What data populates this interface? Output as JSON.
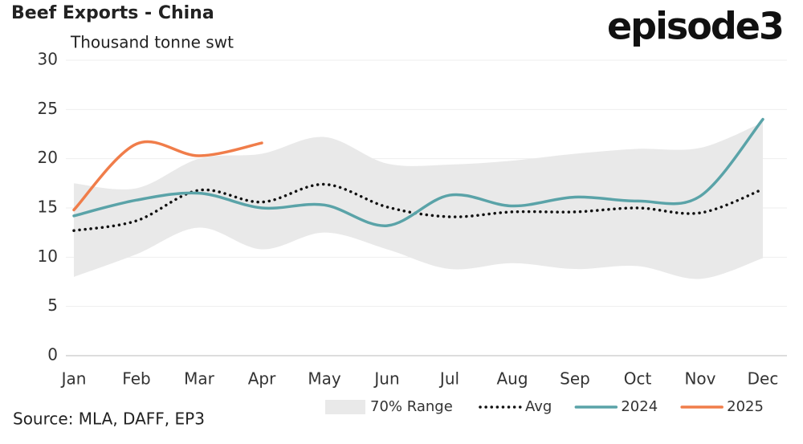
{
  "chart_data": {
    "type": "line",
    "title": "Beef Exports - China",
    "brand": "episode3",
    "y_label": "Thousand tonne swt",
    "source": "Source: MLA, DAFF, EP3",
    "categories": [
      "Jan",
      "Feb",
      "Mar",
      "Apr",
      "May",
      "Jun",
      "Jul",
      "Aug",
      "Sep",
      "Oct",
      "Nov",
      "Dec"
    ],
    "range": {
      "name": "70% Range",
      "color": "#e9e9e9",
      "low": [
        8,
        10.3,
        13,
        10.8,
        12.5,
        10.8,
        8.8,
        9.4,
        8.8,
        9.1,
        7.8,
        9.9
      ],
      "high": [
        17.5,
        17,
        20,
        20.5,
        22.2,
        19.5,
        19.4,
        19.8,
        20.5,
        21,
        21.1,
        23.7
      ]
    },
    "series": [
      {
        "name": "Avg",
        "color": "#111111",
        "dash": true,
        "values": [
          12.7,
          13.7,
          16.8,
          15.6,
          17.4,
          15.1,
          14.1,
          14.6,
          14.6,
          15.0,
          14.5,
          16.9
        ]
      },
      {
        "name": "2024",
        "color": "#5aa3a8",
        "values": [
          14.2,
          15.8,
          16.5,
          15.0,
          15.3,
          13.2,
          16.3,
          15.2,
          16.1,
          15.7,
          16.2,
          24.0
        ]
      },
      {
        "name": "2025",
        "color": "#f07d4a",
        "values": [
          14.8,
          21.5,
          20.3,
          21.6,
          null,
          null,
          null,
          null,
          null,
          null,
          null,
          null
        ]
      }
    ],
    "ylim": [
      0,
      30
    ],
    "yticks": [
      0,
      5,
      10,
      15,
      20,
      25,
      30
    ],
    "grid": true
  }
}
